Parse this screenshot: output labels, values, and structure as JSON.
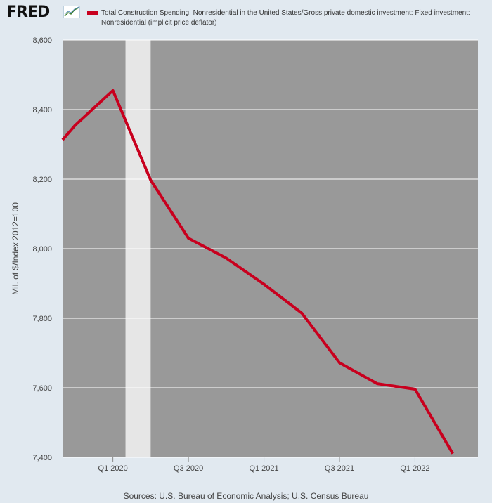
{
  "header": {
    "logo_text": "FRED",
    "logo_icon": "fred-chart-icon"
  },
  "source": "Sources: U.S. Bureau of Economic Analysis; U.S. Census Bureau",
  "colors": {
    "background": "#e1e9f0",
    "plot_background": "#999999",
    "recession_shade": "#e6e6e6",
    "series_line": "#c8001e",
    "grid": "#ffffff"
  },
  "chart_data": {
    "type": "line",
    "title": "",
    "xlabel": "",
    "ylabel": "Mil. of $/Index 2012=100",
    "ylim": [
      7400,
      8600
    ],
    "yticks": [
      7400,
      7600,
      7800,
      8000,
      8200,
      8400,
      8600
    ],
    "ytick_labels": [
      "7,400",
      "7,600",
      "7,800",
      "8,000",
      "8,200",
      "8,400",
      "8,600"
    ],
    "xlim": [
      "2019-09",
      "2022-06"
    ],
    "xticks": [
      "2020-01",
      "2020-07",
      "2021-01",
      "2021-07",
      "2022-01"
    ],
    "xtick_labels": [
      "Q1 2020",
      "Q3 2020",
      "Q1 2021",
      "Q3 2021",
      "Q1 2022"
    ],
    "grid": true,
    "legend_position": "top",
    "recession": {
      "start": "2020-02",
      "end": "2020-04"
    },
    "series": [
      {
        "name": "Total Construction Spending: Nonresidential in the United States/Gross private domestic investment: Fixed investment: Nonresidential (implicit price deflator)",
        "color": "#c8001e",
        "x": [
          "2019-09",
          "2019-10",
          "2020-01",
          "2020-04",
          "2020-07",
          "2020-10",
          "2021-01",
          "2021-04",
          "2021-07",
          "2021-10",
          "2022-01",
          "2022-04"
        ],
        "y": [
          8313,
          8355,
          8455,
          8197,
          8030,
          7973,
          7898,
          7815,
          7672,
          7612,
          7596,
          7411
        ]
      }
    ]
  }
}
